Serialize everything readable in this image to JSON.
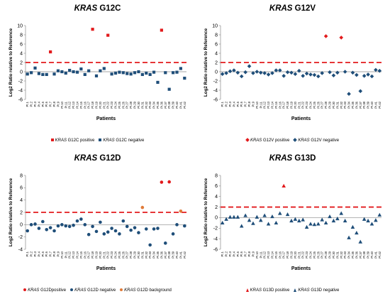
{
  "colors": {
    "negative": "#1F4E79",
    "positive": "#E21A1C",
    "background": "#E07B39",
    "threshold": "#E21A1C"
  },
  "patient_labels": [
    "Pt.1",
    "Pt.2",
    "Pt.3",
    "Pt.4",
    "Pt.5",
    "Pt.6",
    "Pt.7",
    "Pt.8",
    "Pt.9",
    "Pt.10",
    "Pt.11",
    "Pt.12",
    "Pt.13",
    "Pt.14",
    "Pt.15",
    "Pt.16",
    "Pt.17",
    "Pt.18",
    "Pt.19",
    "Pt.20",
    "Pt.21",
    "Pt.22",
    "Pt.23",
    "Pt.24",
    "Pt.25",
    "Pt.26",
    "Pt.27",
    "Pt.28",
    "Pt.29",
    "Pt.30",
    "Pt.31",
    "Pt.32",
    "Pt.33",
    "Pt.34",
    "Pt.35",
    "Pt.36",
    "Pt.37",
    "Pt.38",
    "Pt.39",
    "Pt.40",
    "Pt.41",
    "Pt.42"
  ],
  "chart_data": [
    {
      "type": "scatter",
      "title_gene": "KRAS",
      "title_variant": "G12C",
      "xlabel": "Patients",
      "ylabel": "Log2 Ratio relative to Reference",
      "ylim": [
        -6,
        10
      ],
      "yticks": [
        -6,
        -4,
        -2,
        0,
        2,
        4,
        6,
        8,
        10
      ],
      "threshold": 2,
      "marker": "square",
      "series": [
        {
          "name": "positive",
          "legend_gene": "KRAS",
          "legend_text": "G12C positive",
          "color": "#E21A1C",
          "points": [
            [
              7,
              4.3
            ],
            [
              18,
              9.2
            ],
            [
              22,
              7.9
            ],
            [
              36,
              9.0
            ]
          ]
        },
        {
          "name": "negative",
          "legend_gene": "KRAS",
          "legend_text": "G12C negative",
          "color": "#1F4E79",
          "points": [
            [
              1,
              -0.5
            ],
            [
              2,
              -0.2
            ],
            [
              3,
              0.8
            ],
            [
              4,
              -0.4
            ],
            [
              5,
              -0.6
            ],
            [
              6,
              -0.6
            ],
            [
              8,
              -0.5
            ],
            [
              9,
              0.2
            ],
            [
              10,
              0.0
            ],
            [
              11,
              -0.3
            ],
            [
              12,
              0.3
            ],
            [
              13,
              0.0
            ],
            [
              14,
              -0.1
            ],
            [
              15,
              0.6
            ],
            [
              16,
              -0.6
            ],
            [
              17,
              0.2
            ],
            [
              19,
              -0.9
            ],
            [
              20,
              0.2
            ],
            [
              21,
              0.7
            ],
            [
              23,
              -0.5
            ],
            [
              24,
              -0.3
            ],
            [
              25,
              -0.1
            ],
            [
              26,
              -0.2
            ],
            [
              27,
              -0.4
            ],
            [
              28,
              -0.5
            ],
            [
              29,
              -0.2
            ],
            [
              30,
              0.0
            ],
            [
              31,
              -0.6
            ],
            [
              32,
              -0.3
            ],
            [
              33,
              -0.6
            ],
            [
              34,
              -0.1
            ],
            [
              35,
              -2.3
            ],
            [
              37,
              -0.2
            ],
            [
              38,
              -3.8
            ],
            [
              39,
              -0.2
            ],
            [
              40,
              -0.1
            ],
            [
              41,
              0.7
            ],
            [
              42,
              -1.4
            ]
          ]
        }
      ]
    },
    {
      "type": "scatter",
      "title_gene": "KRAS",
      "title_variant": "G12V",
      "xlabel": "Patients",
      "ylabel": "Log2 Ratio relative to Reference",
      "ylim": [
        -6,
        10
      ],
      "yticks": [
        -6,
        -4,
        -2,
        0,
        2,
        4,
        6,
        8,
        10
      ],
      "threshold": 2,
      "marker": "diamond",
      "series": [
        {
          "name": "positive",
          "legend_gene": "KRAS",
          "legend_text": "G12V positive",
          "color": "#E21A1C",
          "points": [
            [
              28,
              7.7
            ],
            [
              32,
              7.4
            ]
          ]
        },
        {
          "name": "negative",
          "legend_gene": "KRAS",
          "legend_text": "G12V negative",
          "color": "#1F4E79",
          "points": [
            [
              1,
              -0.5
            ],
            [
              2,
              -0.3
            ],
            [
              3,
              0.1
            ],
            [
              4,
              0.3
            ],
            [
              5,
              -0.2
            ],
            [
              6,
              -1.0
            ],
            [
              7,
              -0.1
            ],
            [
              8,
              1.2
            ],
            [
              9,
              -0.3
            ],
            [
              10,
              0.0
            ],
            [
              11,
              -0.2
            ],
            [
              12,
              -0.3
            ],
            [
              13,
              -0.6
            ],
            [
              14,
              -0.3
            ],
            [
              15,
              0.3
            ],
            [
              16,
              0.3
            ],
            [
              17,
              -0.9
            ],
            [
              18,
              -0.1
            ],
            [
              19,
              -0.2
            ],
            [
              20,
              -0.5
            ],
            [
              21,
              0.2
            ],
            [
              22,
              -0.9
            ],
            [
              23,
              -0.4
            ],
            [
              24,
              -0.6
            ],
            [
              25,
              -0.7
            ],
            [
              26,
              -1.0
            ],
            [
              27,
              -0.3
            ],
            [
              29,
              -0.1
            ],
            [
              30,
              -0.8
            ],
            [
              31,
              -0.2
            ],
            [
              33,
              0.0
            ],
            [
              34,
              -4.8
            ],
            [
              35,
              -0.2
            ],
            [
              36,
              -0.7
            ],
            [
              37,
              -4.2
            ],
            [
              38,
              -0.9
            ],
            [
              39,
              -0.6
            ],
            [
              40,
              -1.0
            ],
            [
              41,
              0.4
            ],
            [
              42,
              0.2
            ]
          ]
        }
      ]
    },
    {
      "type": "scatter",
      "title_gene": "KRAS",
      "title_variant": "G12D",
      "xlabel": "Patients",
      "ylabel": "Log2 Ratio relative to Reference",
      "ylim": [
        -4,
        8
      ],
      "yticks": [
        -4,
        -2,
        0,
        2,
        4,
        6,
        8
      ],
      "threshold": 2,
      "marker": "circle",
      "series": [
        {
          "name": "positive",
          "legend_gene": "KRAS",
          "legend_text": "G12Dpositive",
          "color": "#E21A1C",
          "points": [
            [
              36,
              6.9
            ],
            [
              38,
              6.95
            ]
          ]
        },
        {
          "name": "negative",
          "legend_gene": "KRAS",
          "legend_text": "G12D negative",
          "color": "#1F4E79",
          "points": [
            [
              1,
              -1.0
            ],
            [
              2,
              0.0
            ],
            [
              3,
              0.1
            ],
            [
              4,
              -0.6
            ],
            [
              5,
              0.5
            ],
            [
              6,
              -0.8
            ],
            [
              7,
              -0.5
            ],
            [
              8,
              -1.0
            ],
            [
              9,
              -0.2
            ],
            [
              10,
              0.0
            ],
            [
              11,
              -0.2
            ],
            [
              12,
              -0.3
            ],
            [
              13,
              -0.1
            ],
            [
              14,
              0.6
            ],
            [
              15,
              0.9
            ],
            [
              16,
              0.0
            ],
            [
              17,
              -1.6
            ],
            [
              18,
              -0.3
            ],
            [
              19,
              -1.1
            ],
            [
              20,
              0.4
            ],
            [
              21,
              -1.5
            ],
            [
              22,
              -1.2
            ],
            [
              23,
              -0.6
            ],
            [
              24,
              -1.0
            ],
            [
              25,
              -1.5
            ],
            [
              26,
              0.6
            ],
            [
              27,
              -0.3
            ],
            [
              28,
              -0.9
            ],
            [
              29,
              -0.5
            ],
            [
              30,
              -1.3
            ],
            [
              32,
              -0.7
            ],
            [
              33,
              -3.3
            ],
            [
              34,
              -0.7
            ],
            [
              35,
              -0.6
            ],
            [
              37,
              -3.0
            ],
            [
              39,
              -1.5
            ],
            [
              40,
              0.0
            ],
            [
              42,
              -0.2
            ]
          ]
        },
        {
          "name": "background",
          "legend_gene": "KRAS",
          "legend_text": "G12D background",
          "color": "#E07B39",
          "points": [
            [
              31,
              2.8
            ],
            [
              41,
              2.2
            ]
          ]
        }
      ]
    },
    {
      "type": "scatter",
      "title_gene": "KRAS",
      "title_variant": "G13D",
      "xlabel": "Patients",
      "ylabel": "Log2 Ratio relative to Reference",
      "ylim": [
        -6,
        8
      ],
      "yticks": [
        -6,
        -4,
        -2,
        0,
        2,
        4,
        6,
        8
      ],
      "threshold": 2,
      "marker": "triangle",
      "series": [
        {
          "name": "positive",
          "legend_gene": "KRAS",
          "legend_text": "G13D positive",
          "color": "#E21A1C",
          "points": [
            [
              17,
              6.0
            ]
          ]
        },
        {
          "name": "negative",
          "legend_gene": "KRAS",
          "legend_text": "G13D negative",
          "color": "#1F4E79",
          "points": [
            [
              1,
              -1.0
            ],
            [
              2,
              -0.3
            ],
            [
              3,
              0.1
            ],
            [
              4,
              0.1
            ],
            [
              5,
              0.1
            ],
            [
              6,
              -1.6
            ],
            [
              7,
              0.4
            ],
            [
              8,
              -0.5
            ],
            [
              9,
              -1.1
            ],
            [
              10,
              0.1
            ],
            [
              11,
              -0.5
            ],
            [
              12,
              0.4
            ],
            [
              13,
              -1.2
            ],
            [
              14,
              0.2
            ],
            [
              15,
              -1.0
            ],
            [
              16,
              0.8
            ],
            [
              18,
              0.6
            ],
            [
              19,
              -0.6
            ],
            [
              20,
              -0.3
            ],
            [
              21,
              -0.6
            ],
            [
              22,
              -0.4
            ],
            [
              23,
              -1.8
            ],
            [
              24,
              -1.2
            ],
            [
              25,
              -1.3
            ],
            [
              26,
              -1.2
            ],
            [
              27,
              -0.4
            ],
            [
              28,
              -1.0
            ],
            [
              29,
              0.2
            ],
            [
              30,
              -0.6
            ],
            [
              31,
              -0.2
            ],
            [
              32,
              0.8
            ],
            [
              33,
              -0.6
            ],
            [
              34,
              -3.8
            ],
            [
              35,
              -1.8
            ],
            [
              36,
              -2.9
            ],
            [
              37,
              -4.6
            ],
            [
              38,
              -0.3
            ],
            [
              39,
              -0.6
            ],
            [
              40,
              -1.2
            ],
            [
              41,
              -0.5
            ],
            [
              42,
              0.5
            ]
          ]
        }
      ]
    }
  ]
}
